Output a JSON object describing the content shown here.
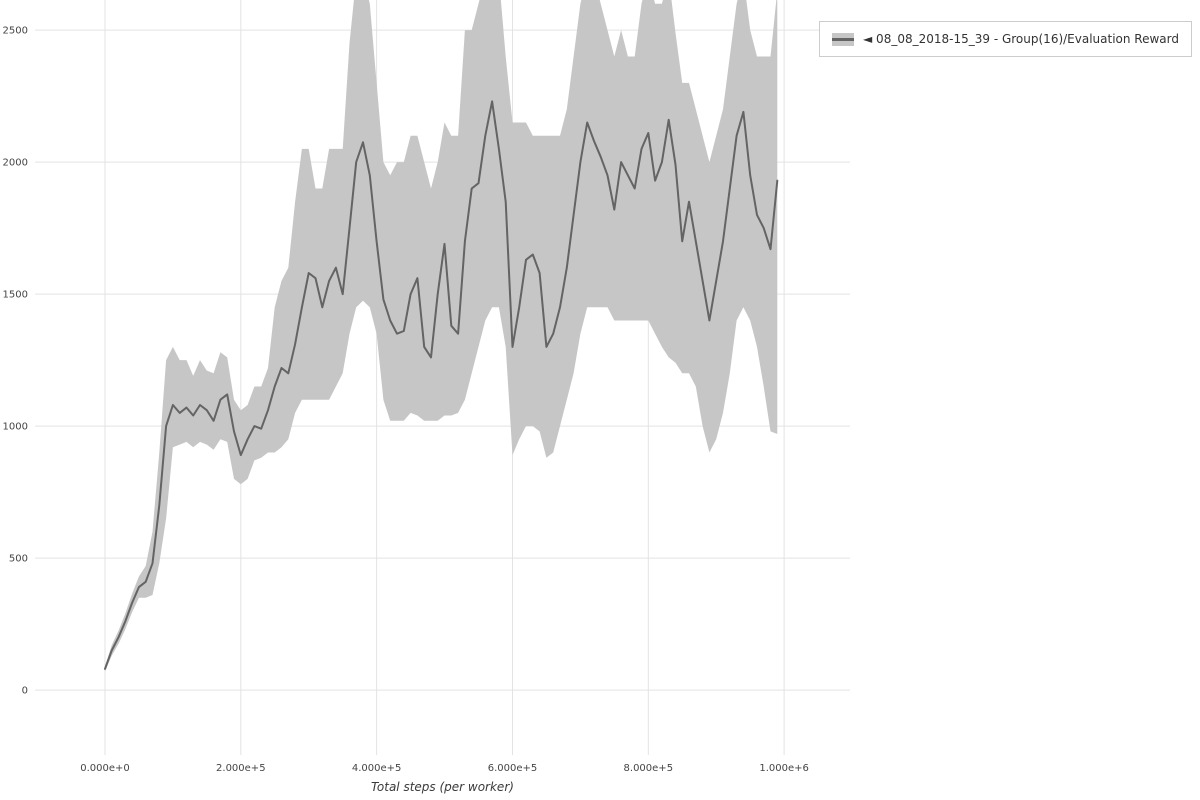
{
  "legend": {
    "label": "◄ 08_08_2018-15_39 - Group(16)/Evaluation Reward"
  },
  "chart_data": {
    "type": "line",
    "title": "",
    "xlabel": "Total steps (per worker)",
    "ylabel": "",
    "legend_position": "top-right",
    "grid": true,
    "x_range": [
      -103000,
      1097000
    ],
    "y_range": [
      -246,
      2614
    ],
    "x_ticks": {
      "values": [
        0,
        200000,
        400000,
        600000,
        800000,
        1000000
      ],
      "labels": [
        "0.000e+0",
        "2.000e+5",
        "4.000e+5",
        "6.000e+5",
        "8.000e+5",
        "1.000e+6"
      ]
    },
    "y_ticks": {
      "values": [
        0,
        500,
        1000,
        1500,
        2000,
        2500
      ],
      "labels": [
        "0",
        "500",
        "1000",
        "1500",
        "2000",
        "2500"
      ]
    },
    "colors": {
      "band": "#c6c6c6",
      "line": "#646464",
      "grid": "#e3e3e3",
      "tick_text": "#454545"
    },
    "series": [
      {
        "name": "08_08_2018-15_39 - Group(16)/Evaluation Reward",
        "steps": [
          0,
          10000,
          20000,
          30000,
          40000,
          50000,
          60000,
          70000,
          80000,
          90000,
          100000,
          110000,
          120000,
          130000,
          140000,
          150000,
          160000,
          170000,
          180000,
          190000,
          200000,
          210000,
          220000,
          230000,
          240000,
          250000,
          260000,
          270000,
          280000,
          290000,
          300000,
          310000,
          320000,
          330000,
          340000,
          350000,
          360000,
          370000,
          380000,
          390000,
          400000,
          410000,
          420000,
          430000,
          440000,
          450000,
          460000,
          470000,
          480000,
          490000,
          500000,
          510000,
          520000,
          530000,
          540000,
          550000,
          560000,
          570000,
          580000,
          590000,
          600000,
          610000,
          620000,
          630000,
          640000,
          650000,
          660000,
          670000,
          680000,
          690000,
          700000,
          710000,
          720000,
          730000,
          740000,
          750000,
          760000,
          770000,
          780000,
          790000,
          800000,
          810000,
          820000,
          830000,
          840000,
          850000,
          860000,
          870000,
          880000,
          890000,
          900000,
          910000,
          920000,
          930000,
          940000,
          950000,
          960000,
          970000,
          980000,
          990000
        ],
        "mean": [
          80,
          150,
          200,
          260,
          330,
          390,
          410,
          480,
          700,
          1000,
          1080,
          1050,
          1070,
          1040,
          1080,
          1060,
          1020,
          1100,
          1120,
          980,
          890,
          950,
          1000,
          990,
          1060,
          1150,
          1220,
          1200,
          1310,
          1450,
          1580,
          1560,
          1450,
          1550,
          1600,
          1500,
          1750,
          2000,
          2075,
          1950,
          1700,
          1480,
          1400,
          1350,
          1360,
          1500,
          1560,
          1300,
          1260,
          1500,
          1690,
          1380,
          1350,
          1700,
          1900,
          1920,
          2100,
          2230,
          2050,
          1850,
          1300,
          1450,
          1630,
          1650,
          1580,
          1300,
          1350,
          1450,
          1600,
          1800,
          2000,
          2150,
          2080,
          2020,
          1950,
          1820,
          2000,
          1950,
          1900,
          2050,
          2110,
          1930,
          2000,
          2160,
          1990,
          1700,
          1850,
          1700,
          1550,
          1400,
          1550,
          1700,
          1900,
          2100,
          2190,
          1950,
          1800,
          1750,
          1670,
          1930
        ],
        "lower": [
          70,
          130,
          175,
          230,
          295,
          350,
          350,
          360,
          480,
          650,
          920,
          930,
          940,
          920,
          940,
          930,
          910,
          950,
          940,
          800,
          780,
          800,
          870,
          880,
          900,
          900,
          920,
          950,
          1050,
          1100,
          1100,
          1100,
          1100,
          1100,
          1150,
          1200,
          1350,
          1450,
          1475,
          1450,
          1350,
          1100,
          1020,
          1020,
          1020,
          1050,
          1040,
          1020,
          1020,
          1020,
          1040,
          1040,
          1050,
          1100,
          1200,
          1300,
          1400,
          1450,
          1450,
          1300,
          890,
          950,
          1000,
          1000,
          980,
          880,
          900,
          1000,
          1100,
          1200,
          1350,
          1450,
          1450,
          1450,
          1450,
          1400,
          1400,
          1400,
          1400,
          1400,
          1400,
          1350,
          1300,
          1260,
          1240,
          1200,
          1200,
          1150,
          1000,
          900,
          950,
          1050,
          1200,
          1400,
          1450,
          1400,
          1300,
          1150,
          980,
          970
        ],
        "upper": [
          90,
          170,
          225,
          290,
          365,
          430,
          470,
          600,
          900,
          1250,
          1300,
          1250,
          1250,
          1190,
          1250,
          1210,
          1200,
          1280,
          1260,
          1100,
          1060,
          1080,
          1150,
          1150,
          1220,
          1450,
          1550,
          1600,
          1850,
          2050,
          2050,
          1900,
          1900,
          2050,
          2050,
          2050,
          2450,
          2700,
          2700,
          2600,
          2300,
          2000,
          1950,
          2000,
          2000,
          2100,
          2100,
          2000,
          1900,
          2000,
          2150,
          2100,
          2100,
          2500,
          2500,
          2600,
          2700,
          2700,
          2700,
          2400,
          2150,
          2150,
          2150,
          2100,
          2100,
          2100,
          2100,
          2100,
          2200,
          2400,
          2600,
          2700,
          2700,
          2600,
          2500,
          2400,
          2500,
          2400,
          2400,
          2600,
          2700,
          2600,
          2600,
          2700,
          2490,
          2300,
          2300,
          2200,
          2100,
          2000,
          2100,
          2200,
          2400,
          2600,
          2700,
          2500,
          2400,
          2400,
          2400,
          2650
        ]
      }
    ]
  }
}
